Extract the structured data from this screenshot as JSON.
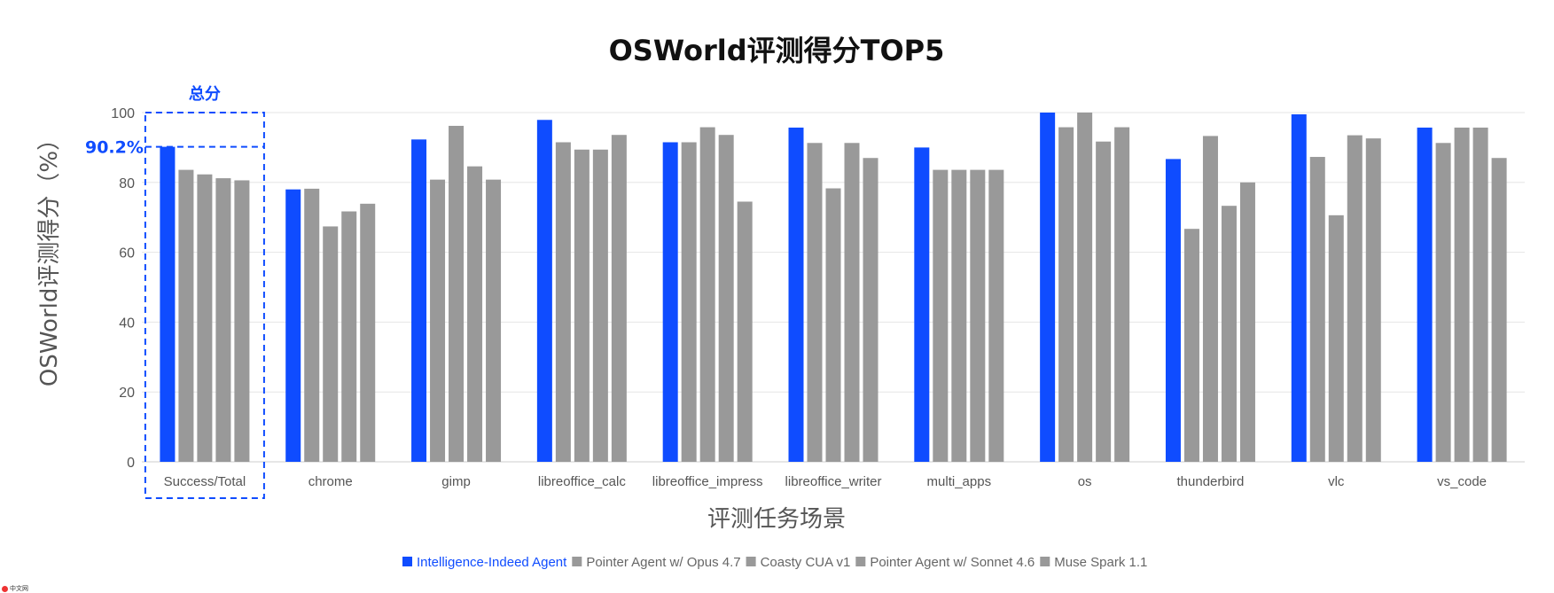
{
  "chart_data": {
    "type": "bar",
    "title": "OSWorld评测得分TOP5",
    "xlabel": "评测任务场景",
    "ylabel": "OSWorld评测得分（%）",
    "ylim": [
      0,
      100
    ],
    "yticks": [
      0,
      20,
      40,
      60,
      80,
      100
    ],
    "grid": true,
    "legend_position": "bottom",
    "categories": [
      "Success/Total",
      "chrome",
      "gimp",
      "libreoffice_calc",
      "libreoffice_impress",
      "libreoffice_writer",
      "multi_apps",
      "os",
      "thunderbird",
      "vlc",
      "vs_code"
    ],
    "series": [
      {
        "name": "Intelligence-Indeed Agent",
        "color": "#0f4cff",
        "values": [
          90.2,
          78.0,
          92.3,
          97.9,
          91.5,
          95.7,
          90.0,
          100.0,
          86.7,
          99.5,
          95.7
        ]
      },
      {
        "name": "Pointer Agent w/ Opus 4.7",
        "color": "#999999",
        "values": [
          83.6,
          78.2,
          80.8,
          91.5,
          91.5,
          91.3,
          83.6,
          95.8,
          66.7,
          87.3,
          91.3
        ]
      },
      {
        "name": "Coasty CUA v1",
        "color": "#999999",
        "values": [
          82.3,
          67.4,
          96.2,
          89.4,
          95.8,
          78.3,
          83.6,
          100.0,
          93.3,
          70.6,
          95.7
        ]
      },
      {
        "name": "Pointer Agent w/ Sonnet 4.6",
        "color": "#999999",
        "values": [
          81.2,
          71.7,
          84.6,
          89.4,
          93.6,
          91.3,
          83.6,
          91.7,
          73.3,
          93.5,
          95.7
        ]
      },
      {
        "name": "Muse Spark 1.1",
        "color": "#999999",
        "values": [
          80.6,
          73.9,
          80.8,
          93.6,
          74.5,
          87.0,
          83.6,
          95.8,
          80.0,
          92.6,
          87.0
        ]
      }
    ],
    "highlight": {
      "label": "总分",
      "value_label": "90.2%"
    }
  },
  "watermark": {
    "text": "中文网"
  }
}
